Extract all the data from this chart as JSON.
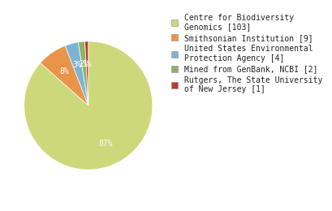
{
  "labels": [
    "Centre for Biodiversity\nGenomics [103]",
    "Smithsonian Institution [9]",
    "United States Environmental\nProtection Agency [4]",
    "Mined from GenBank, NCBI [2]",
    "Rutgers, The State University\nof New Jersey [1]"
  ],
  "values": [
    103,
    9,
    4,
    2,
    1
  ],
  "colors": [
    "#cdd87a",
    "#e8954a",
    "#7db4d4",
    "#8db36a",
    "#c0392b"
  ],
  "background_color": "#ffffff",
  "text_color": "#ffffff",
  "legend_text_color": "#222222",
  "font_size": 7,
  "pct_font_size": 7
}
